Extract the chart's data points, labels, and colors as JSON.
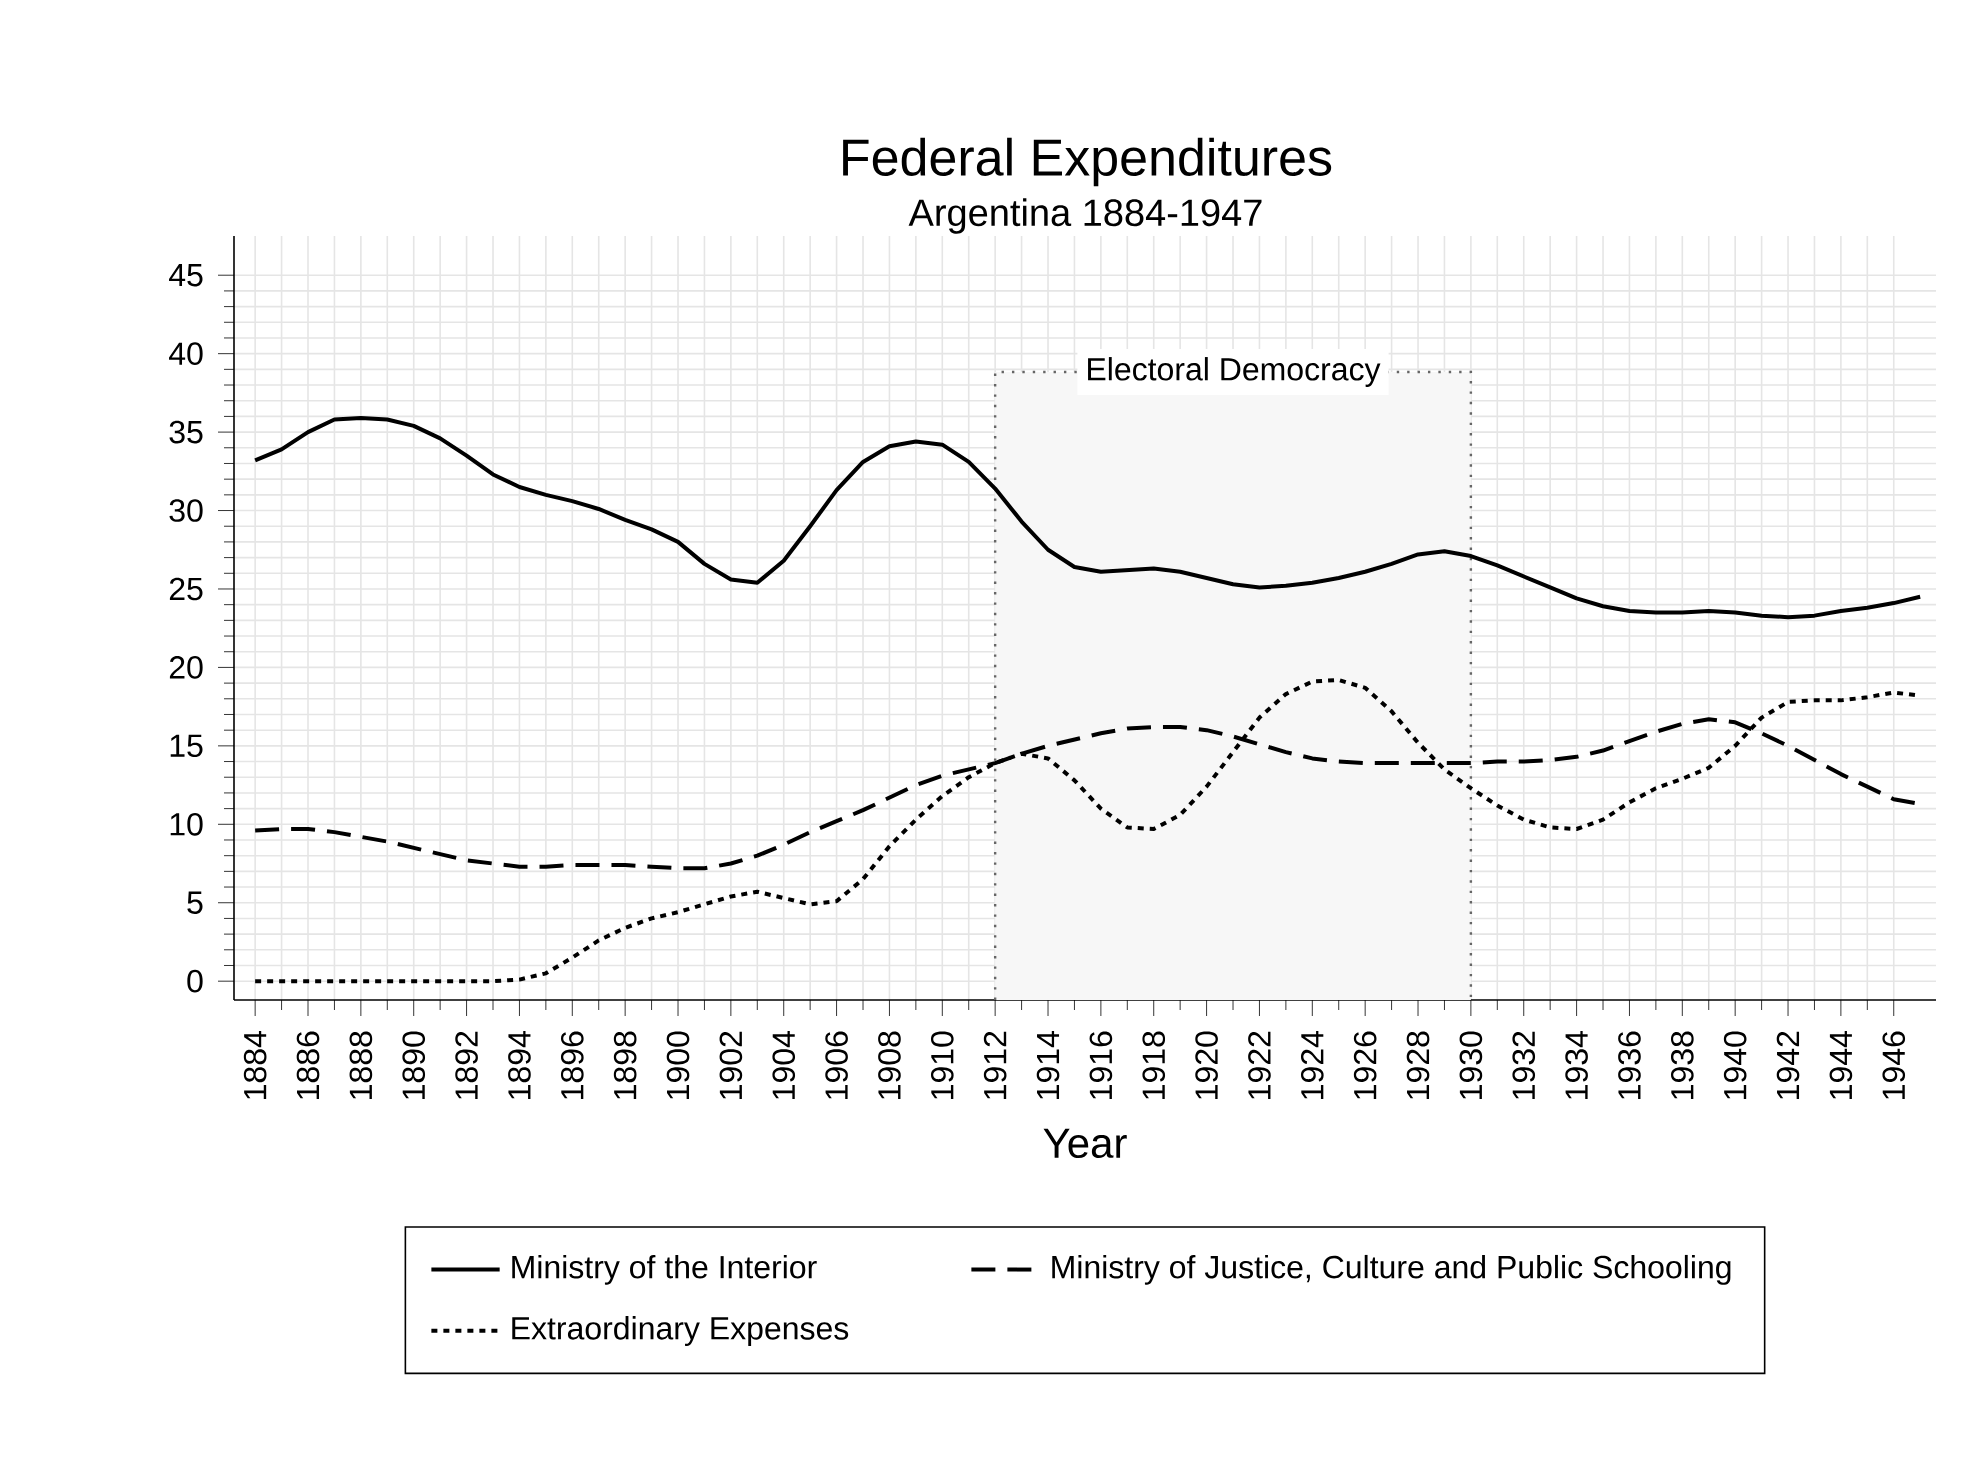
{
  "chart_data": {
    "type": "line",
    "title": "Federal Expenditures",
    "subtitle": "Argentina 1884-1947",
    "xlabel": "Year",
    "x": [
      1884,
      1885,
      1886,
      1887,
      1888,
      1889,
      1890,
      1891,
      1892,
      1893,
      1894,
      1895,
      1896,
      1897,
      1898,
      1899,
      1900,
      1901,
      1902,
      1903,
      1904,
      1905,
      1906,
      1907,
      1908,
      1909,
      1910,
      1911,
      1912,
      1913,
      1914,
      1915,
      1916,
      1917,
      1918,
      1919,
      1920,
      1921,
      1922,
      1923,
      1924,
      1925,
      1926,
      1927,
      1928,
      1929,
      1930,
      1931,
      1932,
      1933,
      1934,
      1935,
      1936,
      1937,
      1938,
      1939,
      1940,
      1941,
      1942,
      1943,
      1944,
      1945,
      1946,
      1947
    ],
    "series": [
      {
        "name": "Ministry of the Interior",
        "color": "#000000",
        "line_style": "solid",
        "values": [
          33.2,
          33.9,
          35,
          35.8,
          35.9,
          35.8,
          35.4,
          34.6,
          33.5,
          32.3,
          31.5,
          31,
          30.6,
          30.1,
          29.4,
          28.8,
          28,
          26.6,
          25.6,
          25.4,
          26.8,
          29,
          31.3,
          33.1,
          34.1,
          34.4,
          34.2,
          33.1,
          31.4,
          29.3,
          27.5,
          26.4,
          26.1,
          26.2,
          26.3,
          26.1,
          25.7,
          25.3,
          25.1,
          25.2,
          25.4,
          25.7,
          26.1,
          26.6,
          27.2,
          27.4,
          27.1,
          26.5,
          25.8,
          25.1,
          24.4,
          23.9,
          23.6,
          23.5,
          23.5,
          23.6,
          23.5,
          23.3,
          23.2,
          23.3,
          23.6,
          23.8,
          24.1,
          24.5
        ]
      },
      {
        "name": "Ministry of Justice, Culture and Public Schooling",
        "color": "#000000",
        "line_style": "dashed",
        "values": [
          9.6,
          9.7,
          9.7,
          9.5,
          9.2,
          8.9,
          8.5,
          8.1,
          7.7,
          7.5,
          7.3,
          7.3,
          7.4,
          7.4,
          7.4,
          7.3,
          7.2,
          7.2,
          7.5,
          8,
          8.7,
          9.5,
          10.2,
          10.9,
          11.7,
          12.5,
          13.1,
          13.5,
          13.9,
          14.5,
          15,
          15.4,
          15.8,
          16.1,
          16.2,
          16.2,
          16,
          15.6,
          15.1,
          14.6,
          14.2,
          14,
          13.9,
          13.9,
          13.9,
          13.9,
          13.9,
          14,
          14,
          14.1,
          14.3,
          14.7,
          15.3,
          15.9,
          16.4,
          16.7,
          16.5,
          15.8,
          15,
          14.1,
          13.2,
          12.4,
          11.6,
          11.3
        ]
      },
      {
        "name": "Extraordinary Expenses",
        "color": "#000000",
        "line_style": "dotted",
        "values": [
          0,
          0,
          0,
          0,
          0,
          0,
          0,
          0,
          0,
          0,
          0.1,
          0.5,
          1.5,
          2.6,
          3.4,
          4,
          4.4,
          4.9,
          5.4,
          5.7,
          5.3,
          4.9,
          5.1,
          6.5,
          8.6,
          10.3,
          11.8,
          13,
          13.9,
          14.5,
          14.2,
          12.8,
          11,
          9.8,
          9.7,
          10.6,
          12.4,
          14.6,
          16.8,
          18.3,
          19.1,
          19.2,
          18.7,
          17.2,
          15.2,
          13.5,
          12.3,
          11.2,
          10.3,
          9.8,
          9.7,
          10.3,
          11.4,
          12.3,
          12.9,
          13.6,
          15,
          16.8,
          17.8,
          17.9,
          17.9,
          18.1,
          18.4,
          18.2
        ]
      }
    ],
    "xlim": [
      1883.2,
      1947.6
    ],
    "ylim": [
      -1.2,
      47.5
    ],
    "xticks": [
      1884,
      1886,
      1888,
      1890,
      1892,
      1894,
      1896,
      1898,
      1900,
      1902,
      1904,
      1906,
      1908,
      1910,
      1912,
      1914,
      1916,
      1918,
      1920,
      1922,
      1924,
      1926,
      1928,
      1930,
      1932,
      1934,
      1936,
      1938,
      1940,
      1942,
      1944,
      1946
    ],
    "yticks": [
      0,
      5,
      10,
      15,
      20,
      25,
      30,
      35,
      40,
      45
    ],
    "bands": [
      {
        "axis": "x",
        "from": 1912,
        "to": 1930,
        "label": "Electoral Democracy"
      }
    ],
    "grid": true,
    "legend": "bottom",
    "marker": "none"
  }
}
